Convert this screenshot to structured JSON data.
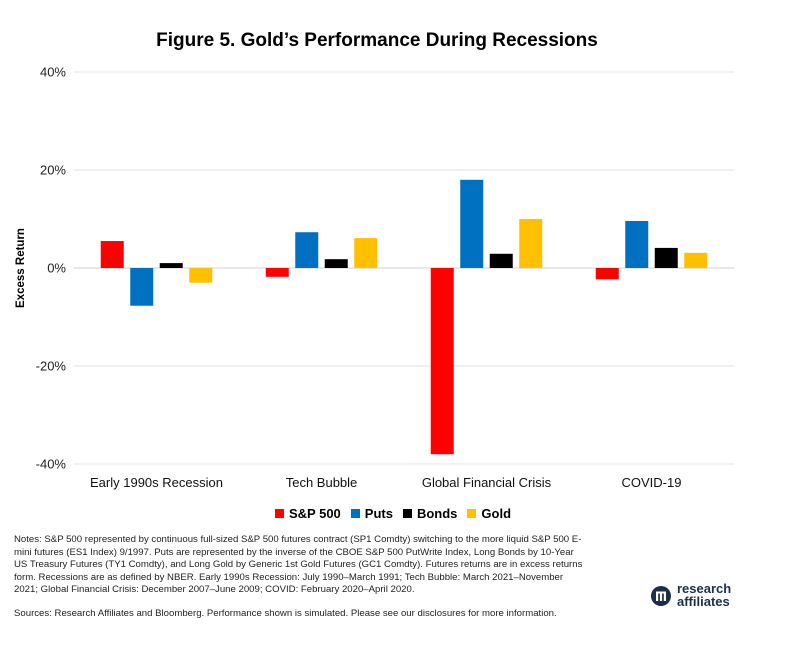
{
  "chart_data": {
    "type": "bar",
    "title": "Figure 5. Gold’s Performance During Recessions",
    "ylabel": "Excess Return",
    "xlabel": "",
    "ylim": [
      -40,
      40
    ],
    "yticks": [
      40,
      20,
      0,
      -20,
      -40
    ],
    "ytick_labels": [
      "40%",
      "20%",
      "0%",
      "-20%",
      "-40%"
    ],
    "categories": [
      "Early 1990s Recession",
      "Tech Bubble",
      "Global Financial Crisis",
      "COVID-19"
    ],
    "series": [
      {
        "name": "S&P 500",
        "color": "#ff0000",
        "values": [
          5.5,
          -1.8,
          -38.0,
          -2.3
        ]
      },
      {
        "name": "Puts",
        "color": "#0070c0",
        "values": [
          -7.7,
          7.3,
          18.0,
          9.6
        ]
      },
      {
        "name": "Bonds",
        "color": "#000000",
        "values": [
          1.0,
          1.8,
          2.9,
          4.1
        ]
      },
      {
        "name": "Gold",
        "color": "#ffc000",
        "values": [
          -3.0,
          6.1,
          10.0,
          3.1
        ]
      }
    ],
    "grid": true,
    "legend_position": "bottom"
  },
  "notes": "Notes: S&P 500 represented by continuous full-sized S&P 500 futures contract (SP1 Comdty) switching to the more liquid S&P 500 E-mini futures (ES1 Index) 9/1997. Puts are represented by the inverse of the CBOE S&P 500 PutWrite Index, Long Bonds by 10-Year US Treasury Futures (TY1 Comdty), and Long Gold by Generic 1st Gold Futures (GC1 Comdty). Futures returns are in excess returns form. Recessions are as defined by NBER. Early 1990s Recession: July 1990–March 1991; Tech Bubble: March 2021–November 2021; Global Financial Crisis: December 2007–June 2009; COVID: February 2020–April 2020.",
  "sources": "Sources: Research Affiliates and Bloomberg. Performance shown is simulated. Please see our disclosures for more information.",
  "logo": {
    "line1": "research",
    "line2": "affiliates",
    "color": "#1c2f4a"
  }
}
